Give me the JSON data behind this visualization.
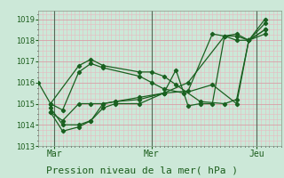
{
  "xlabel": "Pression niveau de la mer( hPa )",
  "bg_color": "#cce8d8",
  "plot_bg_color": "#cce8d8",
  "grid_major_color": "#d8a0a8",
  "grid_minor_color": "#e8b8c0",
  "line_color": "#1a6020",
  "ylim": [
    1013,
    1019.4
  ],
  "yticks": [
    1013,
    1014,
    1015,
    1016,
    1017,
    1018,
    1019
  ],
  "xlim": [
    0,
    120
  ],
  "xtick_positions": [
    8,
    56,
    108
  ],
  "xtick_labels": [
    "Mar",
    "Mer",
    "Jeu"
  ],
  "vline_positions": [
    8,
    56,
    108
  ],
  "lines": [
    {
      "x": [
        0,
        6,
        20,
        26,
        32,
        50,
        56,
        62,
        68,
        80,
        92,
        98,
        104,
        112
      ],
      "y": [
        1016.0,
        1015.0,
        1016.8,
        1017.1,
        1016.8,
        1016.5,
        1016.5,
        1016.3,
        1015.9,
        1015.1,
        1015.0,
        1015.2,
        1018.0,
        1018.5
      ]
    },
    {
      "x": [
        6,
        12,
        20,
        26,
        32,
        50,
        56,
        62,
        72,
        86,
        98,
        104,
        112
      ],
      "y": [
        1015.0,
        1014.7,
        1016.5,
        1016.9,
        1016.7,
        1016.3,
        1016.0,
        1015.7,
        1015.5,
        1015.9,
        1015.0,
        1018.0,
        1018.8
      ]
    },
    {
      "x": [
        6,
        12,
        20,
        26,
        32,
        38,
        50,
        62,
        74,
        92,
        98,
        104,
        112
      ],
      "y": [
        1014.6,
        1014.2,
        1015.0,
        1015.0,
        1015.0,
        1015.1,
        1015.3,
        1015.5,
        1016.0,
        1018.2,
        1018.3,
        1018.0,
        1018.5
      ]
    },
    {
      "x": [
        6,
        12,
        20,
        26,
        32,
        38,
        50,
        62,
        74,
        86,
        92,
        98,
        104,
        112
      ],
      "y": [
        1014.6,
        1013.7,
        1013.9,
        1014.2,
        1014.8,
        1015.0,
        1015.0,
        1015.5,
        1015.6,
        1018.3,
        1018.2,
        1018.0,
        1018.0,
        1018.3
      ]
    },
    {
      "x": [
        6,
        12,
        20,
        26,
        32,
        38,
        50,
        62,
        68,
        74,
        80,
        86,
        92,
        98,
        104,
        112
      ],
      "y": [
        1014.8,
        1014.0,
        1014.0,
        1014.2,
        1015.0,
        1015.1,
        1015.2,
        1015.5,
        1016.6,
        1014.9,
        1015.0,
        1015.0,
        1018.2,
        1018.2,
        1018.0,
        1019.0
      ]
    }
  ]
}
